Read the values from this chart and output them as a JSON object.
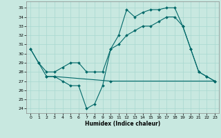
{
  "title": "",
  "xlabel": "Humidex (Indice chaleur)",
  "ylabel": "",
  "background_color": "#c8e8e0",
  "grid_color": "#a8d8d0",
  "line_color": "#006868",
  "xlim": [
    -0.5,
    23.5
  ],
  "ylim": [
    23.5,
    35.7
  ],
  "yticks": [
    24,
    25,
    26,
    27,
    28,
    29,
    30,
    31,
    32,
    33,
    34,
    35
  ],
  "xticks": [
    0,
    1,
    2,
    3,
    4,
    5,
    6,
    7,
    8,
    9,
    10,
    11,
    12,
    13,
    14,
    15,
    16,
    17,
    18,
    19,
    20,
    21,
    22,
    23
  ],
  "line1_x": [
    0,
    1,
    2,
    3,
    4,
    5,
    6,
    7,
    8,
    9,
    10,
    11,
    12,
    13,
    14,
    15,
    16,
    17,
    18,
    19,
    20,
    21,
    22,
    23
  ],
  "line1_y": [
    30.5,
    29,
    27.5,
    27.5,
    27,
    26.5,
    26.5,
    24,
    24.5,
    26.5,
    30.5,
    32,
    34.8,
    34,
    34.5,
    34.8,
    34.8,
    35,
    35,
    33,
    30.5,
    28,
    27.5,
    27
  ],
  "line2_x": [
    0,
    1,
    2,
    3,
    4,
    5,
    6,
    7,
    8,
    9,
    10,
    11,
    12,
    13,
    14,
    15,
    16,
    17,
    18,
    19,
    20,
    21,
    22,
    23
  ],
  "line2_y": [
    30.5,
    29,
    28,
    28,
    28.5,
    29,
    29,
    28,
    28,
    28,
    30.5,
    31,
    32,
    32.5,
    33,
    33,
    33.5,
    34,
    34,
    33,
    30.5,
    28,
    27.5,
    27
  ],
  "line3_x": [
    2,
    3,
    10,
    23
  ],
  "line3_y": [
    27.5,
    27.5,
    27,
    27
  ]
}
